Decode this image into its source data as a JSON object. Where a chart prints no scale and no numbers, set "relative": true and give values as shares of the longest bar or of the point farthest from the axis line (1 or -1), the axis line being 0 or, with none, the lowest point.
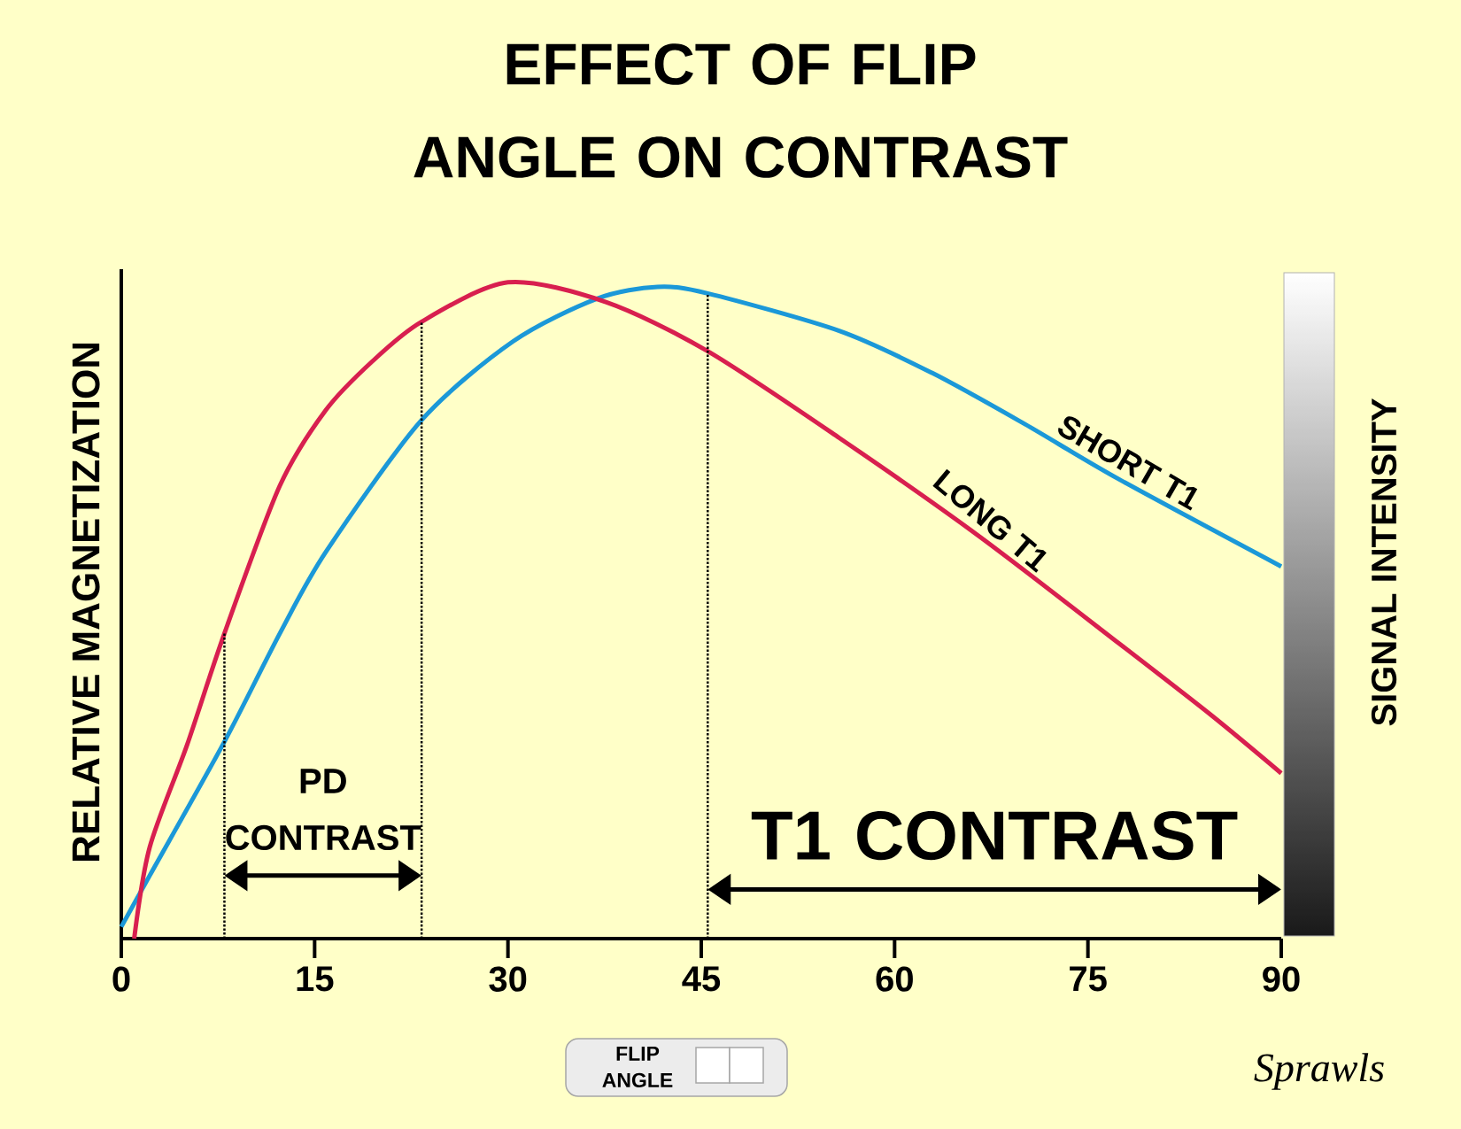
{
  "chart_data": {
    "type": "line",
    "title": "EFFECT OF FLIP ANGLE ON CONTRAST",
    "xlabel": "FLIP ANGLE",
    "ylabel": "RELATIVE MAGNETIZATION",
    "y2label": "SIGNAL INTENSITY",
    "relative": true,
    "xlim": [
      0,
      90
    ],
    "xticks": [
      0,
      15,
      30,
      45,
      60,
      75,
      90
    ],
    "line_style": "solid",
    "series": [
      {
        "name": "SHORT T1",
        "color": "#1b98d8",
        "x": [
          0,
          2.2,
          8,
          12.3,
          15.9,
          23.3,
          30.4,
          36.9,
          41.6,
          45.5,
          55.7,
          62.9,
          70.1,
          77.4,
          90
        ],
        "values": [
          0.018,
          0.096,
          0.3,
          0.465,
          0.59,
          0.79,
          0.91,
          0.975,
          0.993,
          0.983,
          0.926,
          0.862,
          0.784,
          0.7,
          0.567
        ]
      },
      {
        "name": "LONG T1",
        "color": "#d81f4f",
        "x": [
          1,
          2.2,
          5.1,
          8,
          12.3,
          15.9,
          19.5,
          23.3,
          30,
          37.6,
          45.5,
          55.7,
          66.5,
          77.4,
          84.6,
          90
        ],
        "values": [
          0,
          0.139,
          0.295,
          0.465,
          0.69,
          0.806,
          0.88,
          0.94,
          1.0,
          0.97,
          0.895,
          0.763,
          0.614,
          0.45,
          0.34,
          0.252
        ]
      }
    ],
    "ref_lines": [
      {
        "axis": "x",
        "value": 8,
        "line_style": "dotted"
      },
      {
        "axis": "x",
        "value": 23.3,
        "line_style": "dotted"
      },
      {
        "axis": "x",
        "value": 45.5,
        "line_style": "dotted"
      }
    ],
    "annotations": [
      "PD CONTRAST",
      "T1 CONTRAST",
      "Sprawls"
    ]
  }
}
